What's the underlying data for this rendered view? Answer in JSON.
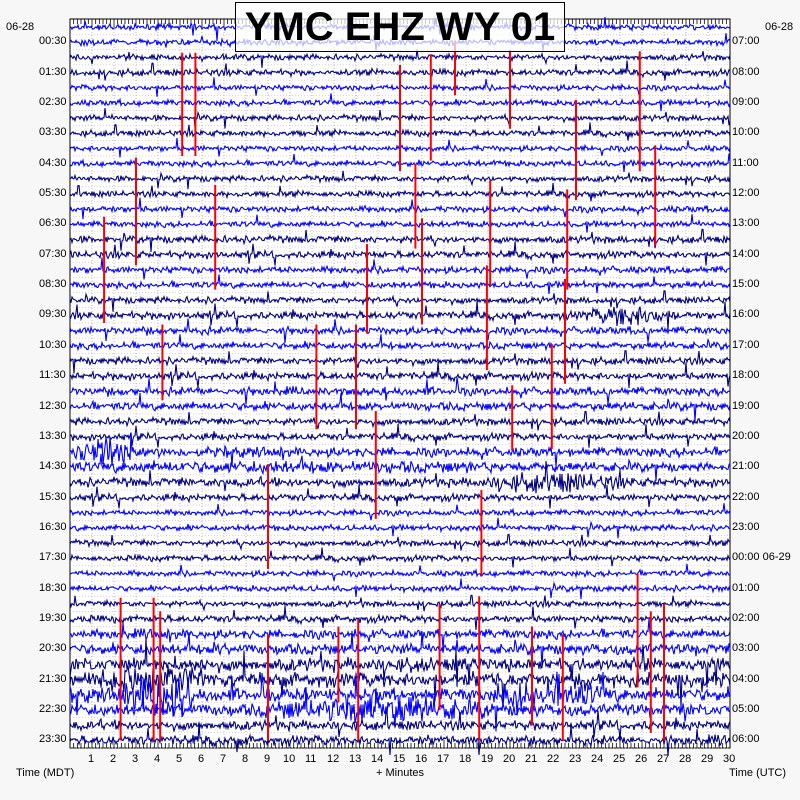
{
  "chart_data": {
    "type": "line",
    "title": "YMC EHZ WY 01",
    "xlabel": "+ Minutes",
    "left_axis_label": "Time (MDT)",
    "right_axis_label": "Time (UTC)",
    "left_date": "06-28",
    "right_date": "06-28",
    "x_ticks": [
      "1",
      "2",
      "3",
      "4",
      "5",
      "6",
      "7",
      "8",
      "9",
      "10",
      "11",
      "12",
      "13",
      "14",
      "15",
      "16",
      "17",
      "18",
      "19",
      "20",
      "21",
      "22",
      "23",
      "24",
      "25",
      "26",
      "27",
      "28",
      "29",
      "30"
    ],
    "xlim": [
      0,
      30
    ],
    "row_count": 48,
    "row_minutes": 30,
    "left_labels": [
      "00:30",
      "01:30",
      "02:30",
      "03:30",
      "04:30",
      "05:30",
      "06:30",
      "07:30",
      "08:30",
      "09:30",
      "10:30",
      "11:30",
      "12:30",
      "13:30",
      "14:30",
      "15:30",
      "16:30",
      "17:30",
      "18:30",
      "19:30",
      "20:30",
      "21:30",
      "22:30",
      "23:30"
    ],
    "right_labels": [
      "07:00",
      "08:00",
      "09:00",
      "10:00",
      "11:00",
      "12:00",
      "13:00",
      "14:00",
      "15:00",
      "16:00",
      "17:00",
      "18:00",
      "19:00",
      "20:00",
      "21:00",
      "22:00",
      "23:00",
      "00:00 06-29",
      "01:00",
      "02:00",
      "03:00",
      "04:00",
      "05:00",
      "06:00"
    ],
    "trace_colors": [
      "#0000ff",
      "#0000ff",
      "#000080",
      "#000080"
    ],
    "event_color": "#ff0000",
    "row_activity": [
      1,
      1,
      1,
      1.1,
      1,
      1,
      1,
      1,
      1,
      1,
      1,
      1,
      1.1,
      1,
      1.2,
      1.2,
      1.2,
      1.1,
      1.1,
      1.3,
      1.3,
      1.2,
      1.2,
      1.3,
      1.4,
      1.4,
      1.2,
      1.2,
      1.6,
      1.3,
      1.5,
      1.2,
      1,
      1,
      1,
      1,
      1,
      1,
      1,
      1.2,
      1.6,
      1.8,
      2.2,
      2.4,
      2.2,
      2.0,
      1.6,
      1.6
    ],
    "bursts": [
      {
        "row": 28,
        "minute": 1.6,
        "width": 1.5,
        "amp": 12
      },
      {
        "row": 19,
        "minute": 25.5,
        "width": 2.5,
        "amp": 6
      },
      {
        "row": 30,
        "minute": 22,
        "width": 4,
        "amp": 5
      },
      {
        "row": 29,
        "minute": 10,
        "width": 20,
        "amp": 2
      },
      {
        "row": 44,
        "minute": 4,
        "width": 2,
        "amp": 14
      },
      {
        "row": 43,
        "minute": 3.5,
        "width": 3,
        "amp": 10
      },
      {
        "row": 45,
        "minute": 14,
        "width": 6,
        "amp": 8
      },
      {
        "row": 44,
        "minute": 22,
        "width": 3,
        "amp": 9
      }
    ],
    "events": [
      {
        "minute": 5.1,
        "start_row": 1.7,
        "rows": 6.8
      },
      {
        "minute": 5.7,
        "start_row": 1.7,
        "rows": 6.8
      },
      {
        "minute": 3.0,
        "start_row": 8.6,
        "rows": 7.1
      },
      {
        "minute": 1.55,
        "start_row": 12.5,
        "rows": 7.0
      },
      {
        "minute": 6.6,
        "start_row": 10.4,
        "rows": 6.9
      },
      {
        "minute": 15.0,
        "start_row": 2.5,
        "rows": 7.0
      },
      {
        "minute": 16.4,
        "start_row": 1.8,
        "rows": 7.0
      },
      {
        "minute": 17.5,
        "start_row": 0.9,
        "rows": 3.6
      },
      {
        "minute": 20.0,
        "start_row": 1.5,
        "rows": 5.2
      },
      {
        "minute": 23.0,
        "start_row": 4.8,
        "rows": 6.6
      },
      {
        "minute": 25.9,
        "start_row": 1.6,
        "rows": 7.9
      },
      {
        "minute": 26.6,
        "start_row": 7.8,
        "rows": 6.6
      },
      {
        "minute": 15.7,
        "start_row": 9.0,
        "rows": 5.6
      },
      {
        "minute": 16.0,
        "start_row": 12.6,
        "rows": 7.0
      },
      {
        "minute": 19.1,
        "start_row": 10.1,
        "rows": 6.9
      },
      {
        "minute": 18.95,
        "start_row": 15.7,
        "rows": 6.9
      },
      {
        "minute": 22.6,
        "start_row": 10.7,
        "rows": 6.6
      },
      {
        "minute": 22.5,
        "start_row": 16.6,
        "rows": 6.9
      },
      {
        "minute": 13.5,
        "start_row": 14.3,
        "rows": 5.9
      },
      {
        "minute": 4.2,
        "start_row": 19.6,
        "rows": 5.0
      },
      {
        "minute": 11.2,
        "start_row": 19.6,
        "rows": 6.9
      },
      {
        "minute": 13.0,
        "start_row": 19.6,
        "rows": 6.9
      },
      {
        "minute": 20.1,
        "start_row": 23.6,
        "rows": 4.3
      },
      {
        "minute": 21.9,
        "start_row": 20.9,
        "rows": 6.9
      },
      {
        "minute": 13.9,
        "start_row": 25.3,
        "rows": 7.1
      },
      {
        "minute": 18.7,
        "start_row": 30.5,
        "rows": 5.6
      },
      {
        "minute": 9.0,
        "start_row": 28.8,
        "rows": 6.9
      },
      {
        "minute": 2.3,
        "start_row": 37.6,
        "rows": 9.4
      },
      {
        "minute": 3.8,
        "start_row": 37.6,
        "rows": 9.4
      },
      {
        "minute": 4.1,
        "start_row": 38.5,
        "rows": 8.5
      },
      {
        "minute": 9.0,
        "start_row": 40.0,
        "rows": 7.0
      },
      {
        "minute": 13.1,
        "start_row": 39.0,
        "rows": 8.0
      },
      {
        "minute": 16.8,
        "start_row": 38.0,
        "rows": 7.0
      },
      {
        "minute": 18.6,
        "start_row": 37.5,
        "rows": 6.5
      },
      {
        "minute": 21.0,
        "start_row": 39.5,
        "rows": 6.5
      },
      {
        "minute": 22.4,
        "start_row": 40.0,
        "rows": 7.0
      },
      {
        "minute": 25.8,
        "start_row": 36.0,
        "rows": 7.5
      },
      {
        "minute": 26.4,
        "start_row": 38.5,
        "rows": 8.0
      },
      {
        "minute": 27.0,
        "start_row": 38.0,
        "rows": 9.0
      },
      {
        "minute": 12.2,
        "start_row": 39.5,
        "rows": 5.0
      },
      {
        "minute": 18.6,
        "start_row": 43.5,
        "rows": 3.5
      }
    ]
  }
}
